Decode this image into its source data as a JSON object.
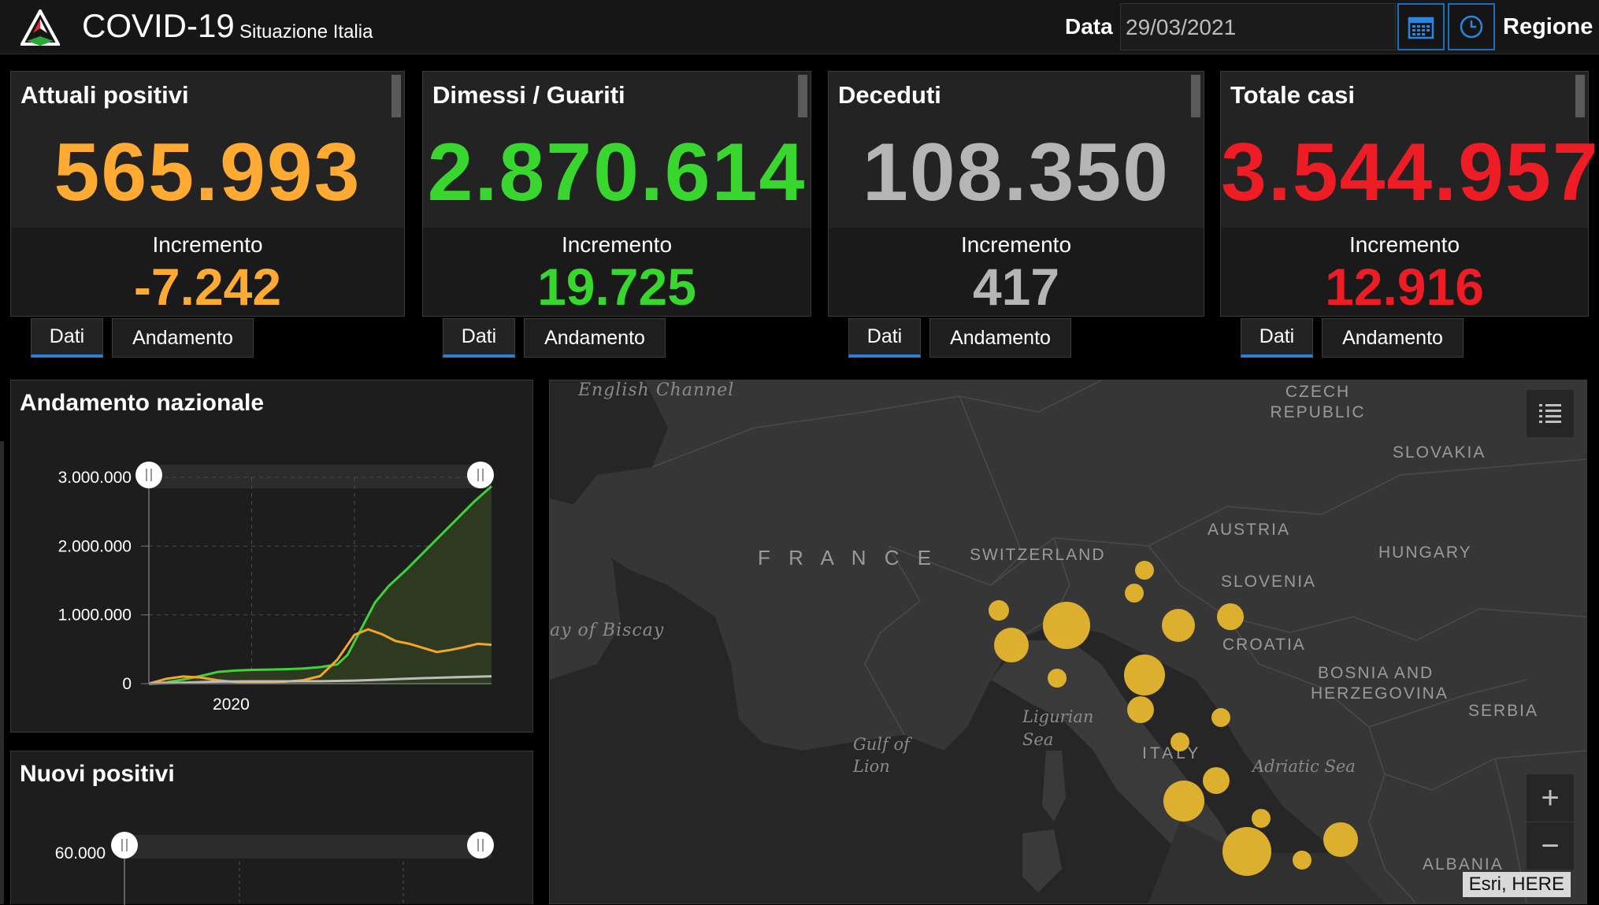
{
  "header": {
    "title": "COVID-19",
    "subtitle": "Situazione Italia",
    "date_label": "Data",
    "date_value": "29/03/2021",
    "region_label": "Regione",
    "icons": [
      "calendar-icon",
      "clock-icon"
    ]
  },
  "cards": [
    {
      "title": "Attuali positivi",
      "value": "565.993",
      "increment_label": "Incremento",
      "increment": "-7.242",
      "color": "#ffaa33",
      "tab_dati": "Dati",
      "tab_andamento": "Andamento"
    },
    {
      "title": "Dimessi / Guariti",
      "value": "2.870.614",
      "increment_label": "Incremento",
      "increment": "19.725",
      "color": "#38d62e",
      "tab_dati": "Dati",
      "tab_andamento": "Andamento"
    },
    {
      "title": "Deceduti",
      "value": "108.350",
      "increment_label": "Incremento",
      "increment": "417",
      "color": "#b5b5b5",
      "tab_dati": "Dati",
      "tab_andamento": "Andamento"
    },
    {
      "title": "Totale casi",
      "value": "3.544.957",
      "increment_label": "Incremento",
      "increment": "12.916",
      "color": "#ee1c25",
      "tab_dati": "Dati",
      "tab_andamento": "Andamento"
    }
  ],
  "trend_panel": {
    "title": "Andamento nazionale",
    "chart_data": {
      "type": "line",
      "title": "Andamento nazionale",
      "y_ticks": [
        "0",
        "1.000.000",
        "2.000.000",
        "3.000.000"
      ],
      "ylim": [
        0,
        3000000
      ],
      "x_ticks": [
        "2020"
      ],
      "xlim": [
        0,
        100
      ],
      "series": [
        {
          "color": "#3fd23a",
          "x": [
            0,
            5,
            10,
            15,
            20,
            25,
            30,
            35,
            40,
            45,
            50,
            55,
            58,
            62,
            66,
            70,
            75,
            80,
            85,
            90,
            95,
            100
          ],
          "values": [
            0,
            20000,
            60000,
            110000,
            170000,
            190000,
            200000,
            205000,
            210000,
            220000,
            240000,
            280000,
            420000,
            800000,
            1180000,
            1420000,
            1650000,
            1900000,
            2150000,
            2400000,
            2650000,
            2870000
          ]
        },
        {
          "color": "#f4a52a",
          "x": [
            0,
            5,
            10,
            15,
            20,
            25,
            30,
            35,
            40,
            45,
            50,
            55,
            60,
            64,
            68,
            72,
            76,
            80,
            84,
            88,
            92,
            96,
            100
          ],
          "values": [
            0,
            70000,
            105000,
            90000,
            50000,
            25000,
            15000,
            20000,
            30000,
            50000,
            110000,
            350000,
            710000,
            790000,
            720000,
            620000,
            580000,
            520000,
            460000,
            490000,
            530000,
            580000,
            566000
          ]
        },
        {
          "color": "#bdbdbd",
          "x": [
            0,
            10,
            20,
            30,
            40,
            50,
            60,
            70,
            80,
            90,
            100
          ],
          "values": [
            0,
            15000,
            30000,
            34000,
            35000,
            36000,
            45000,
            62000,
            80000,
            95000,
            108000
          ]
        }
      ],
      "grid": true
    }
  },
  "new_positive_panel": {
    "title": "Nuovi positivi",
    "chart_data": {
      "type": "line",
      "title": "Nuovi positivi",
      "y_ticks": [
        "60.000"
      ],
      "series": []
    }
  },
  "map": {
    "labels": [
      "English Channel",
      "CZECH REPUBLIC",
      "SLOVAKIA",
      "AUSTRIA",
      "HUNGARY",
      "F R A N C E",
      "SWITZERLAND",
      "SLOVENIA",
      "CROATIA",
      "BOSNIA AND",
      "HERZEGOVINA",
      "SERBIA",
      "ay of Biscay",
      "Ligurian",
      "Sea",
      "Gulf of",
      "Lion",
      "ITALY",
      "Adriatic Sea",
      "ALBANIA"
    ],
    "attribution": "Esri, HERE",
    "zoom_in": "+",
    "zoom_out": "−",
    "bubble_color": "#e6b62e",
    "icons": [
      "layer-list-icon"
    ]
  }
}
